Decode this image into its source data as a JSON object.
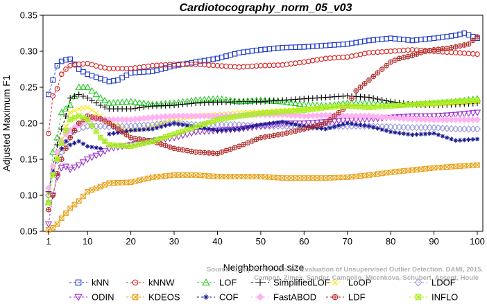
{
  "chart_data": {
    "type": "line",
    "title": "Cardiotocography_norm_05_v03",
    "xlabel": "Neighborhood size",
    "ylabel": "Adjusted Maximum F1",
    "xlim": [
      1,
      100
    ],
    "ylim": [
      0.05,
      0.35
    ],
    "xticks": [
      1,
      10,
      20,
      30,
      40,
      50,
      60,
      70,
      80,
      90,
      100
    ],
    "yticks": [
      0.05,
      0.1,
      0.15,
      0.2,
      0.25,
      0.3,
      0.35
    ],
    "grid": false,
    "legend_position": "bottom",
    "watermark": [
      "Source: Campos et al. On the Evaluation of Unsupervised Outlier Detection. DAMI, 2015.",
      "Campos, Zimek, Sander, Campello, Micenkova, Schubert, Assent, Houle"
    ],
    "series": [
      {
        "name": "kNN",
        "color": "#1c39c6",
        "marker": "square",
        "x": [
          1,
          2,
          3,
          4,
          5,
          6,
          8,
          10,
          13,
          15,
          17,
          20,
          25,
          30,
          35,
          40,
          45,
          50,
          55,
          60,
          65,
          70,
          75,
          80,
          85,
          90,
          95,
          97,
          100
        ],
        "y": [
          0.24,
          0.26,
          0.28,
          0.286,
          0.288,
          0.289,
          0.275,
          0.268,
          0.262,
          0.258,
          0.26,
          0.27,
          0.272,
          0.28,
          0.285,
          0.29,
          0.298,
          0.302,
          0.305,
          0.306,
          0.308,
          0.31,
          0.315,
          0.318,
          0.315,
          0.318,
          0.322,
          0.325,
          0.318
        ]
      },
      {
        "name": "kNNW",
        "color": "#d62020",
        "marker": "circle",
        "x": [
          1,
          2,
          3,
          4,
          5,
          6,
          8,
          10,
          13,
          15,
          20,
          25,
          30,
          35,
          40,
          45,
          50,
          55,
          60,
          65,
          70,
          75,
          80,
          85,
          90,
          95,
          100
        ],
        "y": [
          0.186,
          0.238,
          0.248,
          0.268,
          0.275,
          0.28,
          0.282,
          0.283,
          0.278,
          0.276,
          0.276,
          0.28,
          0.282,
          0.282,
          0.28,
          0.278,
          0.28,
          0.281,
          0.285,
          0.29,
          0.292,
          0.298,
          0.3,
          0.302,
          0.3,
          0.298,
          0.296
        ]
      },
      {
        "name": "LOF",
        "color": "#22cc22",
        "marker": "triangle",
        "x": [
          1,
          2,
          3,
          4,
          5,
          6,
          8,
          10,
          13,
          15,
          20,
          25,
          30,
          35,
          40,
          45,
          50,
          55,
          60,
          65,
          70,
          75,
          80,
          85,
          90,
          95,
          100
        ],
        "y": [
          0.09,
          0.16,
          0.18,
          0.215,
          0.22,
          0.225,
          0.25,
          0.25,
          0.235,
          0.228,
          0.23,
          0.226,
          0.228,
          0.232,
          0.234,
          0.23,
          0.232,
          0.23,
          0.226,
          0.224,
          0.228,
          0.228,
          0.226,
          0.226,
          0.228,
          0.23,
          0.234
        ]
      },
      {
        "name": "SimplifiedLOF",
        "color": "#000000",
        "marker": "plus",
        "x": [
          1,
          2,
          3,
          4,
          5,
          6,
          8,
          10,
          13,
          15,
          20,
          25,
          30,
          35,
          40,
          45,
          50,
          55,
          60,
          65,
          70,
          75,
          80,
          85,
          90,
          95,
          100
        ],
        "y": [
          0.105,
          0.14,
          0.17,
          0.192,
          0.21,
          0.235,
          0.24,
          0.235,
          0.225,
          0.22,
          0.22,
          0.224,
          0.225,
          0.228,
          0.229,
          0.23,
          0.23,
          0.232,
          0.234,
          0.236,
          0.238,
          0.236,
          0.23,
          0.226,
          0.225,
          0.226,
          0.228
        ]
      },
      {
        "name": "LoOP",
        "color": "#ffe600",
        "marker": "x",
        "x": [
          1,
          2,
          3,
          4,
          5,
          6,
          8,
          10,
          13,
          15,
          20,
          25,
          30,
          35,
          40,
          45,
          50,
          55,
          60,
          65,
          70,
          75,
          80,
          85,
          90,
          95,
          100
        ],
        "y": [
          0.1,
          0.13,
          0.155,
          0.178,
          0.196,
          0.215,
          0.22,
          0.222,
          0.21,
          0.2,
          0.19,
          0.196,
          0.205,
          0.21,
          0.212,
          0.215,
          0.216,
          0.218,
          0.22,
          0.222,
          0.224,
          0.222,
          0.224,
          0.226,
          0.226,
          0.228,
          0.23
        ]
      },
      {
        "name": "LDOF",
        "color": "#9999dd",
        "marker": "diamond",
        "x": [
          1,
          2,
          3,
          4,
          5,
          6,
          8,
          10,
          13,
          15,
          20,
          25,
          30,
          35,
          40,
          45,
          50,
          55,
          60,
          65,
          70,
          75,
          80,
          85,
          90,
          95,
          100
        ],
        "y": [
          0.1,
          0.13,
          0.148,
          0.16,
          0.172,
          0.185,
          0.192,
          0.196,
          0.196,
          0.195,
          0.196,
          0.198,
          0.2,
          0.198,
          0.198,
          0.198,
          0.196,
          0.196,
          0.194,
          0.195,
          0.196,
          0.196,
          0.195,
          0.194,
          0.194,
          0.192,
          0.192
        ]
      },
      {
        "name": "ODIN",
        "color": "#9932cc",
        "marker": "triangle-down",
        "x": [
          1,
          2,
          3,
          4,
          5,
          6,
          8,
          10,
          13,
          15,
          20,
          25,
          30,
          35,
          40,
          45,
          50,
          55,
          60,
          65,
          70,
          75,
          80,
          85,
          90,
          95,
          100
        ],
        "y": [
          0.06,
          0.1,
          0.125,
          0.138,
          0.14,
          0.136,
          0.142,
          0.15,
          0.158,
          0.165,
          0.17,
          0.176,
          0.18,
          0.188,
          0.19,
          0.192,
          0.196,
          0.2,
          0.2,
          0.202,
          0.204,
          0.206,
          0.208,
          0.21,
          0.21,
          0.212,
          0.215
        ]
      },
      {
        "name": "KDEOS",
        "color": "#e8a21b",
        "marker": "boxed-x",
        "x": [
          1,
          2,
          3,
          4,
          5,
          6,
          8,
          10,
          13,
          15,
          20,
          25,
          30,
          35,
          40,
          45,
          50,
          55,
          60,
          65,
          70,
          75,
          80,
          85,
          90,
          95,
          100
        ],
        "y": [
          0.052,
          0.055,
          0.06,
          0.068,
          0.075,
          0.082,
          0.092,
          0.105,
          0.112,
          0.117,
          0.118,
          0.125,
          0.128,
          0.128,
          0.126,
          0.126,
          0.126,
          0.124,
          0.124,
          0.124,
          0.125,
          0.128,
          0.132,
          0.135,
          0.138,
          0.14,
          0.142
        ]
      },
      {
        "name": "COF",
        "color": "#17188f",
        "marker": "asterisk",
        "x": [
          1,
          2,
          3,
          4,
          5,
          6,
          8,
          10,
          13,
          15,
          20,
          25,
          30,
          35,
          40,
          45,
          50,
          55,
          60,
          65,
          70,
          75,
          80,
          85,
          90,
          95,
          100
        ],
        "y": [
          0.11,
          0.135,
          0.15,
          0.165,
          0.175,
          0.17,
          0.175,
          0.168,
          0.165,
          0.185,
          0.19,
          0.192,
          0.2,
          0.195,
          0.19,
          0.192,
          0.198,
          0.202,
          0.196,
          0.192,
          0.2,
          0.196,
          0.188,
          0.184,
          0.186,
          0.176,
          0.178
        ]
      },
      {
        "name": "FastABOD",
        "color": "#ffb3f0",
        "marker": "diamond-filled",
        "x": [
          1,
          2,
          3,
          4,
          5,
          6,
          8,
          10,
          13,
          15,
          20,
          25,
          30,
          35,
          40,
          45,
          50,
          55,
          60,
          65,
          70,
          75,
          80,
          85,
          90,
          95,
          100
        ],
        "y": [
          0.11,
          0.14,
          0.16,
          0.175,
          0.185,
          0.19,
          0.198,
          0.205,
          0.206,
          0.205,
          0.205,
          0.208,
          0.21,
          0.21,
          0.21,
          0.211,
          0.212,
          0.212,
          0.21,
          0.211,
          0.21,
          0.21,
          0.208,
          0.206,
          0.205,
          0.205,
          0.205
        ]
      },
      {
        "name": "LDF",
        "color": "#b02a2a",
        "marker": "circle-plus",
        "x": [
          1,
          2,
          3,
          4,
          5,
          6,
          8,
          10,
          13,
          15,
          20,
          25,
          30,
          35,
          40,
          45,
          50,
          55,
          60,
          65,
          67,
          70,
          72,
          75,
          78,
          80,
          82,
          85,
          88,
          90,
          93,
          95,
          98,
          100
        ],
        "y": [
          0.08,
          0.1,
          0.13,
          0.15,
          0.165,
          0.18,
          0.2,
          0.21,
          0.206,
          0.2,
          0.18,
          0.175,
          0.165,
          0.16,
          0.158,
          0.168,
          0.18,
          0.185,
          0.192,
          0.2,
          0.21,
          0.224,
          0.245,
          0.26,
          0.275,
          0.285,
          0.29,
          0.294,
          0.3,
          0.302,
          0.304,
          0.306,
          0.31,
          0.32
        ]
      },
      {
        "name": "INFLO",
        "color": "#aaee22",
        "marker": "star-box",
        "x": [
          1,
          2,
          3,
          4,
          5,
          6,
          8,
          10,
          13,
          15,
          20,
          25,
          30,
          35,
          40,
          45,
          50,
          55,
          60,
          65,
          70,
          75,
          80,
          85,
          90,
          95,
          100
        ],
        "y": [
          0.09,
          0.128,
          0.15,
          0.172,
          0.19,
          0.205,
          0.21,
          0.205,
          0.18,
          0.17,
          0.168,
          0.175,
          0.185,
          0.195,
          0.205,
          0.21,
          0.214,
          0.216,
          0.218,
          0.222,
          0.224,
          0.222,
          0.224,
          0.226,
          0.228,
          0.23,
          0.232
        ]
      }
    ]
  }
}
